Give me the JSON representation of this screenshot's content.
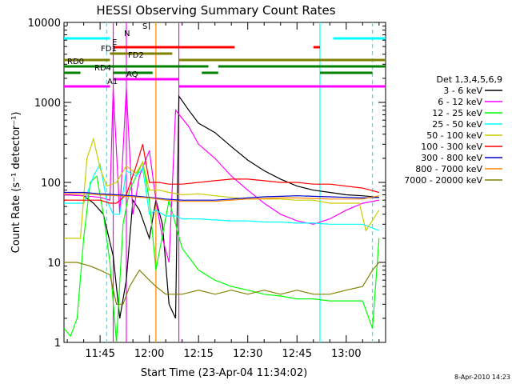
{
  "chart_data": {
    "type": "line",
    "title": "HESSI Observing Summary Count Rates",
    "xlabel": "Start Time (23-Apr-04 11:34:02)",
    "ylabel": "Count Rate (s⁻¹ detector⁻¹)",
    "ylog": true,
    "ylim": [
      1,
      10000
    ],
    "xlim": [
      "11:34",
      "13:12"
    ],
    "x_ticks": [
      "11:45",
      "12:00",
      "12:15",
      "12:30",
      "12:45",
      "13:00"
    ],
    "y_ticks": [
      "1",
      "10",
      "100",
      "1000",
      "10000"
    ],
    "footer": "8-Apr-2010 14:23",
    "legend_title": "Det 1,3,4,5,6,9",
    "legend_position": "right",
    "series": [
      {
        "name": "3 - 6 keV",
        "color": "#000000",
        "points": [
          [
            "11:34",
            70
          ],
          [
            "11:40",
            68
          ],
          [
            "11:43",
            55
          ],
          [
            "11:46",
            40
          ],
          [
            "11:49",
            12
          ],
          [
            "11:51",
            2
          ],
          [
            "11:53",
            6
          ],
          [
            "11:55",
            60
          ],
          [
            "11:57",
            45
          ],
          [
            "12:00",
            20
          ],
          [
            "12:02",
            60
          ],
          [
            "12:04",
            30
          ],
          [
            "12:06",
            3
          ],
          [
            "12:08",
            2
          ],
          [
            "12:09",
            1200
          ],
          [
            "12:12",
            800
          ],
          [
            "12:15",
            550
          ],
          [
            "12:20",
            420
          ],
          [
            "12:25",
            280
          ],
          [
            "12:30",
            190
          ],
          [
            "12:35",
            140
          ],
          [
            "12:40",
            110
          ],
          [
            "12:45",
            90
          ],
          [
            "12:50",
            80
          ],
          [
            "12:55",
            75
          ],
          [
            "13:00",
            70
          ],
          [
            "13:05",
            68
          ],
          [
            "13:10",
            65
          ]
        ]
      },
      {
        "name": "6 - 12 keV",
        "color": "#ff00ff",
        "points": [
          [
            "11:34",
            70
          ],
          [
            "11:40",
            68
          ],
          [
            "11:45",
            65
          ],
          [
            "11:48",
            60
          ],
          [
            "11:49",
            1500
          ],
          [
            "11:51",
            40
          ],
          [
            "11:53",
            1500
          ],
          [
            "11:55",
            40
          ],
          [
            "11:57",
            120
          ],
          [
            "12:00",
            250
          ],
          [
            "12:02",
            60
          ],
          [
            "12:04",
            20
          ],
          [
            "12:06",
            10
          ],
          [
            "12:08",
            800
          ],
          [
            "12:12",
            500
          ],
          [
            "12:15",
            300
          ],
          [
            "12:20",
            200
          ],
          [
            "12:25",
            120
          ],
          [
            "12:30",
            80
          ],
          [
            "12:35",
            55
          ],
          [
            "12:40",
            40
          ],
          [
            "12:45",
            33
          ],
          [
            "12:50",
            30
          ],
          [
            "12:55",
            35
          ],
          [
            "13:00",
            45
          ],
          [
            "13:05",
            55
          ],
          [
            "13:10",
            60
          ]
        ]
      },
      {
        "name": "12 - 25 keV",
        "color": "#00ff00",
        "points": [
          [
            "11:34",
            1.5
          ],
          [
            "11:36",
            1.2
          ],
          [
            "11:38",
            2
          ],
          [
            "11:40",
            20
          ],
          [
            "11:42",
            100
          ],
          [
            "11:44",
            120
          ],
          [
            "11:46",
            40
          ],
          [
            "11:48",
            10
          ],
          [
            "11:50",
            1
          ],
          [
            "11:52",
            30
          ],
          [
            "11:54",
            80
          ],
          [
            "11:56",
            120
          ],
          [
            "11:58",
            180
          ],
          [
            "12:00",
            60
          ],
          [
            "12:02",
            8
          ],
          [
            "12:06",
            60
          ],
          [
            "12:08",
            30
          ],
          [
            "12:10",
            15
          ],
          [
            "12:15",
            8
          ],
          [
            "12:20",
            6
          ],
          [
            "12:25",
            5
          ],
          [
            "12:30",
            4.5
          ],
          [
            "12:35",
            4
          ],
          [
            "12:40",
            3.8
          ],
          [
            "12:45",
            3.5
          ],
          [
            "12:50",
            3.5
          ],
          [
            "12:55",
            3.3
          ],
          [
            "13:00",
            3.3
          ],
          [
            "13:05",
            3.3
          ],
          [
            "13:08",
            1.5
          ],
          [
            "13:10",
            20
          ]
        ]
      },
      {
        "name": "25 - 50 keV",
        "color": "#00ffff",
        "points": [
          [
            "11:34",
            55
          ],
          [
            "11:40",
            55
          ],
          [
            "11:43",
            120
          ],
          [
            "11:45",
            170
          ],
          [
            "11:47",
            60
          ],
          [
            "11:49",
            40
          ],
          [
            "11:51",
            40
          ],
          [
            "11:53",
            140
          ],
          [
            "11:56",
            120
          ],
          [
            "11:58",
            150
          ],
          [
            "12:00",
            40
          ],
          [
            "12:02",
            45
          ],
          [
            "12:05",
            38
          ],
          [
            "12:08",
            38
          ],
          [
            "12:10",
            35
          ],
          [
            "12:15",
            35
          ],
          [
            "12:20",
            34
          ],
          [
            "12:25",
            33
          ],
          [
            "12:30",
            33
          ],
          [
            "12:35",
            32
          ],
          [
            "12:40",
            32
          ],
          [
            "12:45",
            31
          ],
          [
            "12:50",
            31
          ],
          [
            "12:55",
            30
          ],
          [
            "13:00",
            30
          ],
          [
            "13:05",
            30
          ],
          [
            "13:10",
            25
          ]
        ]
      },
      {
        "name": "50 - 100 keV",
        "color": "#cccc00",
        "points": [
          [
            "11:34",
            20
          ],
          [
            "11:39",
            20
          ],
          [
            "11:41",
            200
          ],
          [
            "11:43",
            350
          ],
          [
            "11:45",
            150
          ],
          [
            "11:47",
            90
          ],
          [
            "11:50",
            100
          ],
          [
            "11:53",
            160
          ],
          [
            "11:56",
            130
          ],
          [
            "11:58",
            180
          ],
          [
            "12:00",
            80
          ],
          [
            "12:03",
            80
          ],
          [
            "12:06",
            75
          ],
          [
            "12:10",
            70
          ],
          [
            "12:15",
            72
          ],
          [
            "12:20",
            68
          ],
          [
            "12:25",
            65
          ],
          [
            "12:30",
            62
          ],
          [
            "12:35",
            62
          ],
          [
            "12:40",
            62
          ],
          [
            "12:45",
            60
          ],
          [
            "12:50",
            60
          ],
          [
            "12:55",
            55
          ],
          [
            "13:00",
            55
          ],
          [
            "13:04",
            55
          ],
          [
            "13:06",
            25
          ],
          [
            "13:10",
            45
          ]
        ]
      },
      {
        "name": "100 - 300 keV",
        "color": "#ff0000",
        "points": [
          [
            "11:34",
            60
          ],
          [
            "11:40",
            60
          ],
          [
            "11:45",
            60
          ],
          [
            "11:48",
            55
          ],
          [
            "11:50",
            55
          ],
          [
            "11:53",
            70
          ],
          [
            "11:56",
            160
          ],
          [
            "11:58",
            300
          ],
          [
            "12:00",
            100
          ],
          [
            "12:03",
            100
          ],
          [
            "12:06",
            95
          ],
          [
            "12:10",
            95
          ],
          [
            "12:15",
            100
          ],
          [
            "12:20",
            105
          ],
          [
            "12:25",
            110
          ],
          [
            "12:30",
            110
          ],
          [
            "12:35",
            105
          ],
          [
            "12:40",
            100
          ],
          [
            "12:45",
            100
          ],
          [
            "12:50",
            95
          ],
          [
            "12:55",
            95
          ],
          [
            "13:00",
            90
          ],
          [
            "13:05",
            85
          ],
          [
            "13:10",
            75
          ]
        ]
      },
      {
        "name": "300 - 800 keV",
        "color": "#0000cc",
        "points": [
          [
            "11:34",
            75
          ],
          [
            "11:40",
            75
          ],
          [
            "11:45",
            72
          ],
          [
            "11:50",
            70
          ],
          [
            "11:55",
            68
          ],
          [
            "12:00",
            65
          ],
          [
            "12:05",
            62
          ],
          [
            "12:10",
            60
          ],
          [
            "12:15",
            60
          ],
          [
            "12:20",
            60
          ],
          [
            "12:25",
            62
          ],
          [
            "12:30",
            64
          ],
          [
            "12:35",
            66
          ],
          [
            "12:40",
            67
          ],
          [
            "12:45",
            68
          ],
          [
            "12:50",
            67
          ],
          [
            "12:55",
            66
          ],
          [
            "13:00",
            65
          ],
          [
            "13:05",
            64
          ],
          [
            "13:10",
            65
          ]
        ]
      },
      {
        "name": "800 - 7000 keV",
        "color": "#ff8800",
        "points": [
          [
            "11:34",
            72
          ],
          [
            "11:40",
            72
          ],
          [
            "11:45",
            70
          ],
          [
            "11:50",
            68
          ],
          [
            "11:55",
            66
          ],
          [
            "12:00",
            64
          ],
          [
            "12:05",
            60
          ],
          [
            "12:10",
            58
          ],
          [
            "12:15",
            58
          ],
          [
            "12:20",
            58
          ],
          [
            "12:25",
            60
          ],
          [
            "12:30",
            62
          ],
          [
            "12:35",
            63
          ],
          [
            "12:40",
            64
          ],
          [
            "12:45",
            64
          ],
          [
            "12:50",
            63
          ],
          [
            "12:55",
            62
          ],
          [
            "13:00",
            62
          ],
          [
            "13:05",
            62
          ],
          [
            "13:10",
            68
          ]
        ]
      },
      {
        "name": "7000 - 20000 keV",
        "color": "#808000",
        "points": [
          [
            "11:34",
            10
          ],
          [
            "11:38",
            10
          ],
          [
            "11:42",
            9
          ],
          [
            "11:45",
            8
          ],
          [
            "11:48",
            7
          ],
          [
            "11:50",
            3
          ],
          [
            "11:52",
            3
          ],
          [
            "11:54",
            5
          ],
          [
            "11:57",
            8
          ],
          [
            "12:00",
            6
          ],
          [
            "12:02",
            5
          ],
          [
            "12:05",
            4
          ],
          [
            "12:10",
            4
          ],
          [
            "12:15",
            4.5
          ],
          [
            "12:20",
            4
          ],
          [
            "12:25",
            4.5
          ],
          [
            "12:30",
            4
          ],
          [
            "12:35",
            4.5
          ],
          [
            "12:40",
            4
          ],
          [
            "12:45",
            4.5
          ],
          [
            "12:50",
            4
          ],
          [
            "12:55",
            4
          ],
          [
            "13:00",
            4.5
          ],
          [
            "13:05",
            5
          ],
          [
            "13:08",
            8
          ],
          [
            "13:10",
            10
          ]
        ]
      }
    ],
    "flag_bars": [
      {
        "label": "N",
        "color": "#00ffff",
        "segments": [
          [
            "11:34",
            "11:48"
          ],
          [
            "12:56",
            "13:12"
          ]
        ]
      },
      {
        "label": "S",
        "color": "#cc8800",
        "segments": []
      },
      {
        "label": "E",
        "color": "#ff0000",
        "segments": [
          [
            "11:49",
            "12:26"
          ],
          [
            "12:50",
            "12:52"
          ]
        ]
      },
      {
        "label": "FD1",
        "color": "#808000",
        "segments": [
          [
            "11:48",
            "12:07"
          ]
        ]
      },
      {
        "label": "FD2",
        "color": "#808000",
        "segments": [
          [
            "11:34",
            "11:48"
          ],
          [
            "12:09",
            "13:12"
          ]
        ]
      },
      {
        "label": "RD0",
        "color": "#008000",
        "segments": [
          [
            "11:34",
            "12:18"
          ],
          [
            "12:21",
            "13:12"
          ]
        ]
      },
      {
        "label": "RD4",
        "color": "#008000",
        "segments": [
          [
            "11:34",
            "11:39"
          ],
          [
            "11:49",
            "12:01"
          ],
          [
            "12:16",
            "12:21"
          ],
          [
            "12:52",
            "13:08"
          ]
        ]
      },
      {
        "label": "AQ",
        "color": "#ff00ff",
        "segments": [
          [
            "11:49",
            "12:09"
          ]
        ]
      },
      {
        "label": "A1",
        "color": "#ff00ff",
        "segments": [
          [
            "11:34",
            "11:48"
          ],
          [
            "12:09",
            "13:12"
          ]
        ]
      }
    ],
    "vertical_markers": [
      {
        "time": "11:47",
        "color": "#00ffff",
        "style": "dashed"
      },
      {
        "time": "11:49",
        "color": "#ff00ff",
        "style": "solid"
      },
      {
        "time": "11:53",
        "color": "#ff00ff",
        "style": "solid"
      },
      {
        "time": "12:02",
        "color": "#ff8800",
        "style": "solid"
      },
      {
        "time": "12:09",
        "color": "#ff00ff",
        "style": "solid"
      },
      {
        "time": "12:52",
        "color": "#00ffff",
        "style": "solid"
      },
      {
        "time": "13:08",
        "color": "#00ffff",
        "style": "dashed"
      }
    ]
  }
}
